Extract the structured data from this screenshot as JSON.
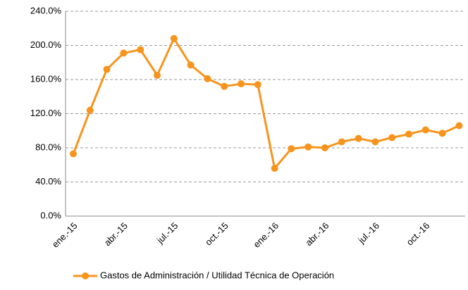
{
  "chart_data": {
    "type": "line",
    "categories": [
      "ene.-15",
      null,
      null,
      "abr.-15",
      null,
      null,
      "jul.-15",
      null,
      null,
      "oct.-15",
      null,
      null,
      "ene.-16",
      null,
      null,
      "abr.-16",
      null,
      null,
      "jul.-16",
      null,
      null,
      "oct.-16",
      null,
      null
    ],
    "series": [
      {
        "name": "Gastos de Administración / Utilidad Técnica de Operación",
        "color": "#f7941d",
        "values": [
          73,
          124,
          172,
          191,
          195,
          165,
          208,
          177,
          161,
          152,
          155,
          154,
          56,
          79,
          81,
          80,
          87,
          91,
          87,
          92,
          96,
          101,
          97,
          106
        ]
      }
    ],
    "ylim": [
      0,
      240
    ],
    "yticks": [
      {
        "value": 0,
        "label": "0.0%"
      },
      {
        "value": 40,
        "label": "40.0%"
      },
      {
        "value": 80,
        "label": "80.0%"
      },
      {
        "value": 120,
        "label": "120.0%"
      },
      {
        "value": 160,
        "label": "160.0%"
      },
      {
        "value": 200,
        "label": "200.0%"
      },
      {
        "value": 240,
        "label": "240.0%"
      }
    ],
    "grid": true,
    "legend": "bottom"
  }
}
